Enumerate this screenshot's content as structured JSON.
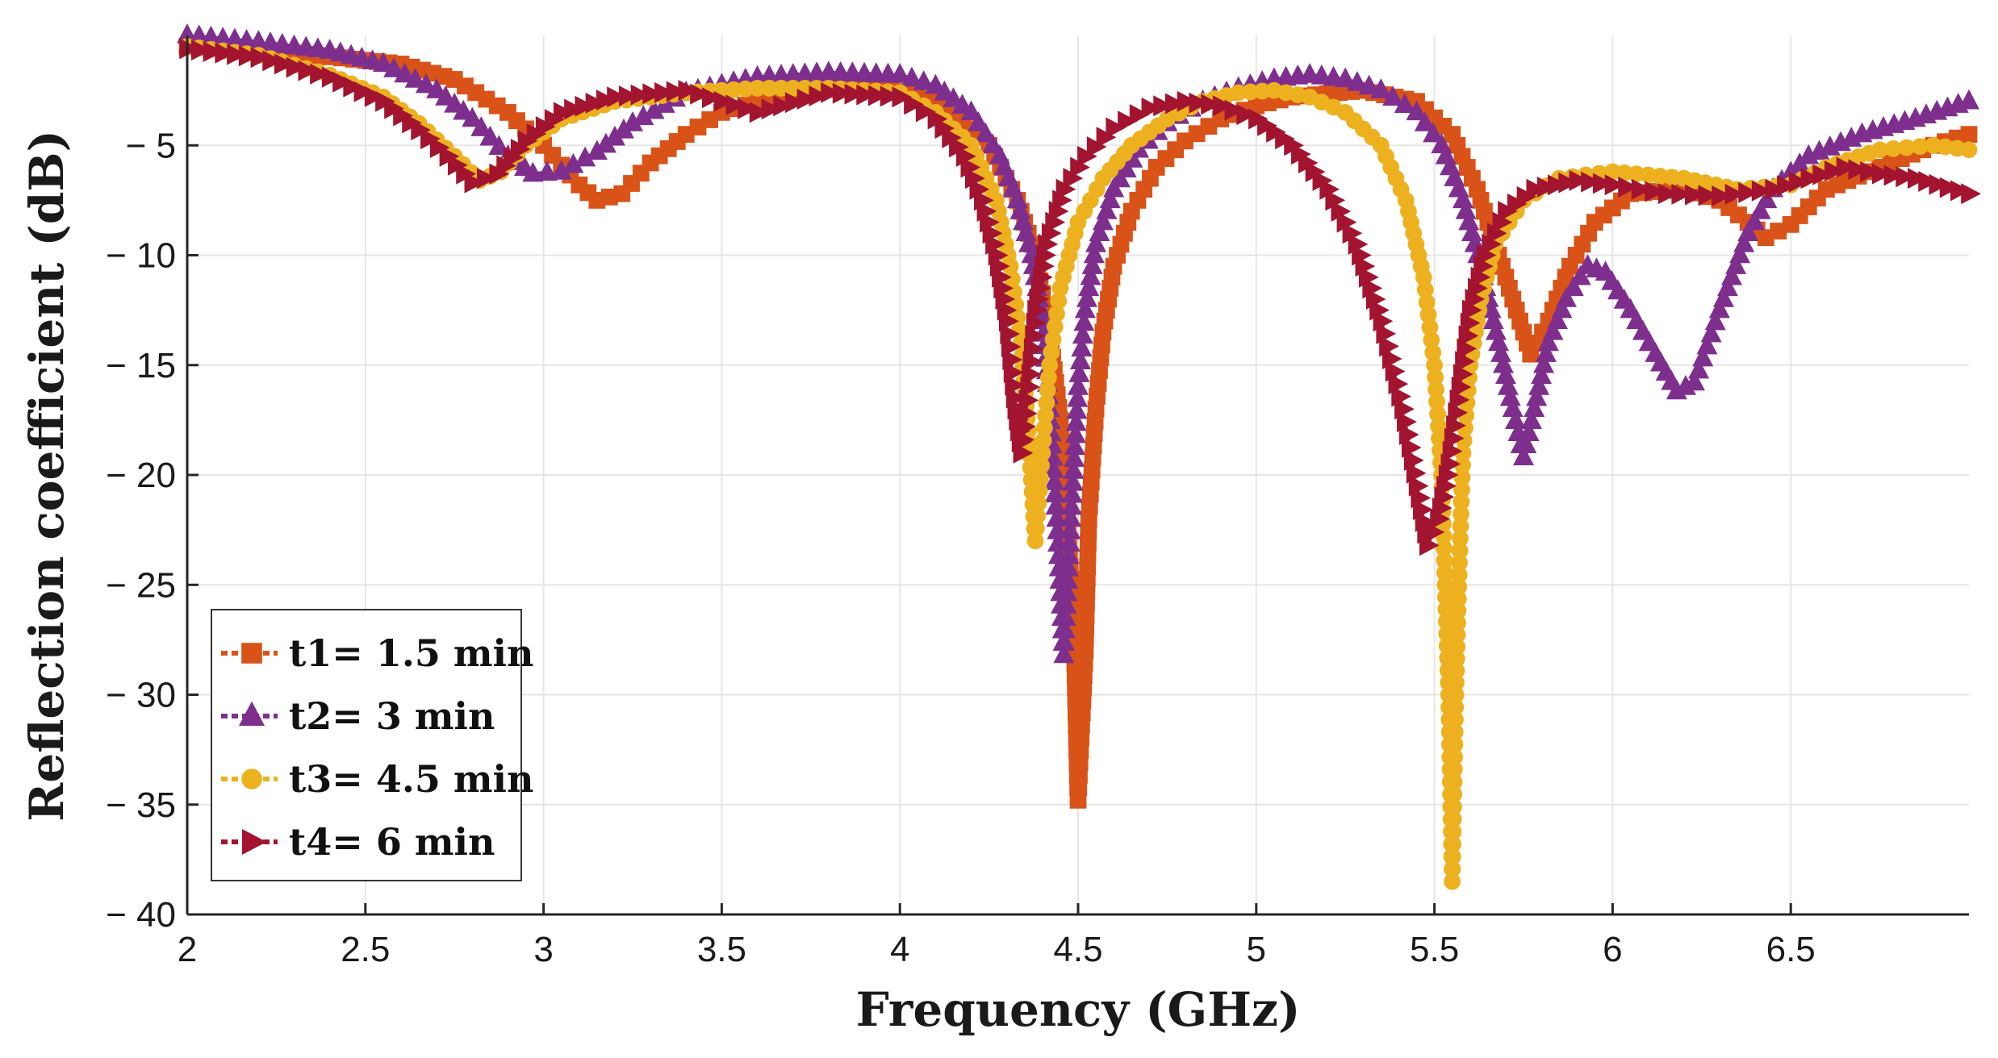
{
  "chart_data": {
    "type": "line",
    "title": "",
    "xlabel": "Frequency (GHz)",
    "ylabel": "Reflection coefficient (dB)",
    "xlim": [
      2,
      7
    ],
    "ylim": [
      -40,
      0
    ],
    "grid": true,
    "legend_position": "bottom-left",
    "x_ticks": [
      2,
      2.5,
      3,
      3.5,
      4,
      4.5,
      5,
      5.5,
      6,
      6.5
    ],
    "x_tick_labels": [
      "2",
      "2.5",
      "3",
      "3.5",
      "4",
      "4.5",
      "5",
      "5.5",
      "6",
      "6.5"
    ],
    "y_ticks": [
      -5,
      -10,
      -15,
      -20,
      -25,
      -30,
      -35,
      -40
    ],
    "y_tick_labels": [
      "− 5",
      "− 10",
      "− 15",
      "− 20",
      "− 25",
      "− 30",
      "− 35",
      "− 40"
    ],
    "series": [
      {
        "name": "t1= 1.5 min",
        "color": "#D95319",
        "marker": "square",
        "points": [
          [
            2.0,
            -0.5
          ],
          [
            2.3,
            -0.8
          ],
          [
            2.6,
            -1.3
          ],
          [
            2.75,
            -2.0
          ],
          [
            2.9,
            -3.5
          ],
          [
            3.0,
            -5.0
          ],
          [
            3.1,
            -6.8
          ],
          [
            3.15,
            -7.5
          ],
          [
            3.22,
            -7.2
          ],
          [
            3.3,
            -5.8
          ],
          [
            3.4,
            -4.5
          ],
          [
            3.5,
            -3.5
          ],
          [
            3.7,
            -2.5
          ],
          [
            3.9,
            -2.4
          ],
          [
            4.05,
            -2.6
          ],
          [
            4.15,
            -3.5
          ],
          [
            4.25,
            -5.0
          ],
          [
            4.33,
            -7.5
          ],
          [
            4.38,
            -10.0
          ],
          [
            4.42,
            -13.5
          ],
          [
            4.45,
            -17.5
          ],
          [
            4.47,
            -22.0
          ],
          [
            4.49,
            -28.0
          ],
          [
            4.5,
            -34.8
          ],
          [
            4.52,
            -28.0
          ],
          [
            4.53,
            -22.0
          ],
          [
            4.55,
            -17.0
          ],
          [
            4.57,
            -13.5
          ],
          [
            4.6,
            -10.5
          ],
          [
            4.65,
            -8.0
          ],
          [
            4.72,
            -6.0
          ],
          [
            4.8,
            -4.8
          ],
          [
            4.9,
            -3.8
          ],
          [
            5.0,
            -3.2
          ],
          [
            5.1,
            -2.8
          ],
          [
            5.3,
            -2.5
          ],
          [
            5.45,
            -3.0
          ],
          [
            5.55,
            -4.5
          ],
          [
            5.62,
            -7.0
          ],
          [
            5.68,
            -10.0
          ],
          [
            5.73,
            -12.5
          ],
          [
            5.77,
            -14.5
          ],
          [
            5.82,
            -13.0
          ],
          [
            5.88,
            -10.5
          ],
          [
            5.95,
            -8.5
          ],
          [
            6.05,
            -7.2
          ],
          [
            6.2,
            -7.0
          ],
          [
            6.3,
            -7.5
          ],
          [
            6.38,
            -8.5
          ],
          [
            6.43,
            -9.2
          ],
          [
            6.5,
            -8.6
          ],
          [
            6.6,
            -7.0
          ],
          [
            6.75,
            -6.0
          ],
          [
            6.9,
            -5.0
          ],
          [
            7.0,
            -4.5
          ]
        ]
      },
      {
        "name": "t2= 3 min",
        "color": "#7E2F8E",
        "marker": "triangle-up",
        "points": [
          [
            2.0,
            0.0
          ],
          [
            2.2,
            -0.3
          ],
          [
            2.4,
            -0.7
          ],
          [
            2.55,
            -1.3
          ],
          [
            2.7,
            -2.5
          ],
          [
            2.8,
            -3.8
          ],
          [
            2.9,
            -5.5
          ],
          [
            2.97,
            -6.3
          ],
          [
            3.05,
            -6.2
          ],
          [
            3.15,
            -5.3
          ],
          [
            3.25,
            -4.0
          ],
          [
            3.4,
            -2.6
          ],
          [
            3.6,
            -1.9
          ],
          [
            3.8,
            -1.7
          ],
          [
            4.0,
            -1.8
          ],
          [
            4.1,
            -2.3
          ],
          [
            4.2,
            -3.5
          ],
          [
            4.28,
            -5.5
          ],
          [
            4.33,
            -7.5
          ],
          [
            4.37,
            -10.0
          ],
          [
            4.4,
            -13.0
          ],
          [
            4.42,
            -17.0
          ],
          [
            4.44,
            -22.0
          ],
          [
            4.46,
            -28.2
          ],
          [
            4.48,
            -22.0
          ],
          [
            4.5,
            -16.0
          ],
          [
            4.52,
            -12.5
          ],
          [
            4.55,
            -9.5
          ],
          [
            4.6,
            -7.0
          ],
          [
            4.67,
            -5.2
          ],
          [
            4.75,
            -4.0
          ],
          [
            4.85,
            -3.0
          ],
          [
            4.95,
            -2.4
          ],
          [
            5.05,
            -2.0
          ],
          [
            5.15,
            -1.8
          ],
          [
            5.25,
            -2.0
          ],
          [
            5.35,
            -2.5
          ],
          [
            5.45,
            -3.5
          ],
          [
            5.52,
            -5.0
          ],
          [
            5.58,
            -7.5
          ],
          [
            5.63,
            -10.5
          ],
          [
            5.68,
            -14.0
          ],
          [
            5.72,
            -17.0
          ],
          [
            5.75,
            -19.2
          ],
          [
            5.78,
            -17.0
          ],
          [
            5.82,
            -14.0
          ],
          [
            5.87,
            -12.0
          ],
          [
            5.93,
            -10.5
          ],
          [
            5.98,
            -10.8
          ],
          [
            6.05,
            -12.5
          ],
          [
            6.12,
            -14.5
          ],
          [
            6.18,
            -16.2
          ],
          [
            6.23,
            -15.8
          ],
          [
            6.3,
            -12.5
          ],
          [
            6.38,
            -9.0
          ],
          [
            6.45,
            -7.0
          ],
          [
            6.55,
            -5.5
          ],
          [
            6.7,
            -4.5
          ],
          [
            6.85,
            -3.8
          ],
          [
            7.0,
            -3.0
          ]
        ]
      },
      {
        "name": "t3= 4.5 min",
        "color": "#EDB120",
        "marker": "circle",
        "points": [
          [
            2.0,
            -0.5
          ],
          [
            2.2,
            -0.9
          ],
          [
            2.4,
            -1.8
          ],
          [
            2.55,
            -2.8
          ],
          [
            2.65,
            -4.0
          ],
          [
            2.75,
            -5.5
          ],
          [
            2.82,
            -6.6
          ],
          [
            2.88,
            -6.2
          ],
          [
            2.95,
            -5.0
          ],
          [
            3.05,
            -3.8
          ],
          [
            3.2,
            -3.0
          ],
          [
            3.4,
            -2.6
          ],
          [
            3.6,
            -2.4
          ],
          [
            3.8,
            -2.4
          ],
          [
            4.0,
            -2.6
          ],
          [
            4.1,
            -3.5
          ],
          [
            4.2,
            -5.0
          ],
          [
            4.27,
            -7.5
          ],
          [
            4.31,
            -10.5
          ],
          [
            4.34,
            -14.0
          ],
          [
            4.36,
            -18.0
          ],
          [
            4.38,
            -23.0
          ],
          [
            4.4,
            -19.0
          ],
          [
            4.42,
            -15.0
          ],
          [
            4.45,
            -11.5
          ],
          [
            4.5,
            -8.5
          ],
          [
            4.57,
            -6.5
          ],
          [
            4.65,
            -5.0
          ],
          [
            4.75,
            -3.8
          ],
          [
            4.85,
            -3.0
          ],
          [
            4.95,
            -2.6
          ],
          [
            5.05,
            -2.5
          ],
          [
            5.15,
            -2.8
          ],
          [
            5.25,
            -3.5
          ],
          [
            5.35,
            -5.0
          ],
          [
            5.42,
            -7.5
          ],
          [
            5.47,
            -11.0
          ],
          [
            5.5,
            -15.0
          ],
          [
            5.52,
            -20.0
          ],
          [
            5.53,
            -25.0
          ],
          [
            5.54,
            -30.0
          ],
          [
            5.55,
            -38.5
          ],
          [
            5.56,
            -30.0
          ],
          [
            5.57,
            -24.0
          ],
          [
            5.58,
            -19.0
          ],
          [
            5.6,
            -15.0
          ],
          [
            5.63,
            -12.0
          ],
          [
            5.67,
            -9.5
          ],
          [
            5.75,
            -7.5
          ],
          [
            5.85,
            -6.5
          ],
          [
            6.0,
            -6.2
          ],
          [
            6.2,
            -6.5
          ],
          [
            6.35,
            -7.0
          ],
          [
            6.5,
            -6.8
          ],
          [
            6.6,
            -6.0
          ],
          [
            6.75,
            -5.2
          ],
          [
            6.9,
            -5.0
          ],
          [
            7.0,
            -5.2
          ]
        ]
      },
      {
        "name": "t4= 6 min",
        "color": "#A2142F",
        "marker": "triangle-right",
        "points": [
          [
            2.0,
            -0.6
          ],
          [
            2.2,
            -1.0
          ],
          [
            2.4,
            -1.9
          ],
          [
            2.55,
            -3.0
          ],
          [
            2.65,
            -4.3
          ],
          [
            2.73,
            -5.5
          ],
          [
            2.8,
            -6.7
          ],
          [
            2.87,
            -6.3
          ],
          [
            2.95,
            -4.8
          ],
          [
            3.05,
            -3.5
          ],
          [
            3.2,
            -2.8
          ],
          [
            3.4,
            -2.5
          ],
          [
            3.6,
            -3.5
          ],
          [
            3.8,
            -2.6
          ],
          [
            4.0,
            -2.8
          ],
          [
            4.1,
            -3.8
          ],
          [
            4.18,
            -5.5
          ],
          [
            4.23,
            -7.5
          ],
          [
            4.27,
            -10.0
          ],
          [
            4.3,
            -13.0
          ],
          [
            4.32,
            -16.5
          ],
          [
            4.34,
            -19.0
          ],
          [
            4.36,
            -16.0
          ],
          [
            4.38,
            -12.5
          ],
          [
            4.41,
            -9.5
          ],
          [
            4.46,
            -7.0
          ],
          [
            4.52,
            -5.5
          ],
          [
            4.6,
            -4.2
          ],
          [
            4.7,
            -3.3
          ],
          [
            4.8,
            -3.0
          ],
          [
            4.9,
            -3.2
          ],
          [
            5.0,
            -3.8
          ],
          [
            5.1,
            -5.0
          ],
          [
            5.2,
            -7.0
          ],
          [
            5.28,
            -9.5
          ],
          [
            5.35,
            -13.0
          ],
          [
            5.41,
            -17.0
          ],
          [
            5.45,
            -20.5
          ],
          [
            5.48,
            -23.2
          ],
          [
            5.51,
            -22.0
          ],
          [
            5.54,
            -19.5
          ],
          [
            5.57,
            -16.0
          ],
          [
            5.6,
            -12.5
          ],
          [
            5.64,
            -10.0
          ],
          [
            5.7,
            -8.0
          ],
          [
            5.78,
            -7.0
          ],
          [
            5.9,
            -6.6
          ],
          [
            6.0,
            -6.8
          ],
          [
            6.15,
            -7.2
          ],
          [
            6.3,
            -7.3
          ],
          [
            6.45,
            -7.0
          ],
          [
            6.55,
            -6.5
          ],
          [
            6.65,
            -6.0
          ],
          [
            6.75,
            -6.3
          ],
          [
            6.85,
            -6.5
          ],
          [
            7.0,
            -7.2
          ]
        ]
      }
    ]
  }
}
